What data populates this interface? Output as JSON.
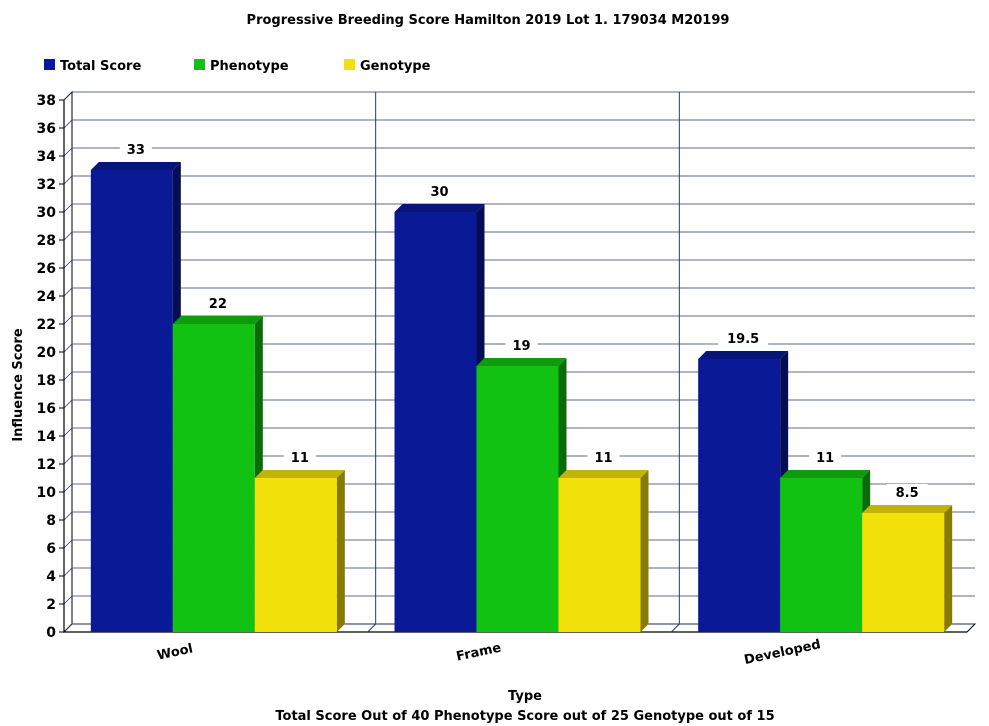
{
  "chart_data": {
    "type": "bar",
    "title": "Progressive Breeding Score Hamilton 2019  Lot 1. 179034  M20199",
    "xlabel": "Type",
    "ylabel": "Influence Score",
    "footnote": "Total Score Out of 40    Phenotype Score out of 25    Genotype out of 15",
    "categories": [
      "Wool",
      "Frame",
      "Developed"
    ],
    "series": [
      {
        "name": "Total Score",
        "values": [
          33,
          30,
          19.5
        ],
        "labels": [
          "33",
          "30",
          "19.5"
        ],
        "color": "#0a1a96"
      },
      {
        "name": "Phenotype",
        "values": [
          22,
          19,
          11
        ],
        "labels": [
          "22",
          "19",
          "11"
        ],
        "color": "#12c212"
      },
      {
        "name": "Genotype",
        "values": [
          11,
          11,
          8.5
        ],
        "labels": [
          "11",
          "11",
          "8.5"
        ],
        "color": "#f2e00a"
      }
    ],
    "ylim": [
      0,
      38
    ],
    "yticks": [
      0,
      2,
      4,
      6,
      8,
      10,
      12,
      14,
      16,
      18,
      20,
      22,
      24,
      26,
      28,
      30,
      32,
      34,
      36,
      38
    ],
    "grid": true,
    "legend_position": "top-left",
    "style": "3d"
  }
}
